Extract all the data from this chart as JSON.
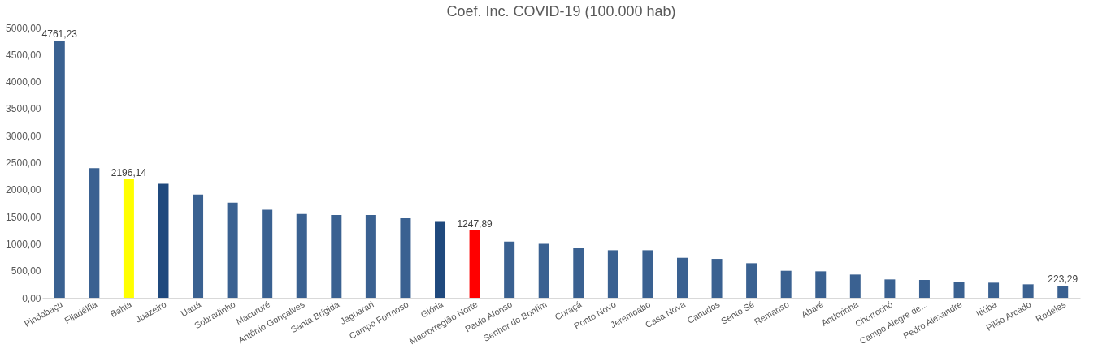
{
  "chart_data": {
    "type": "bar",
    "title": "Coef. Inc. COVID-19 (100.000 hab)",
    "categories": [
      "Pindobaçu",
      "Filadélfia",
      "Bahia",
      "Juazeiro",
      "Uauá",
      "Sobradinho",
      "Macururé",
      "Antônio Gonçalves",
      "Santa Brígida",
      "Jaguarari",
      "Campo Formoso",
      "Glória",
      "Macrorregião Norte",
      "Paulo Afonso",
      "Senhor do Bonfim",
      "Curaçá",
      "Ponto Novo",
      "Jeremoabo",
      "Casa Nova",
      "Canudos",
      "Sento Sé",
      "Remanso",
      "Abaré",
      "Andorinha",
      "Chorrochó",
      "Campo Alegre de...",
      "Pedro Alexandre",
      "Itiúba",
      "Pilão Arcado",
      "Rodelas"
    ],
    "values": [
      4761.23,
      2400,
      2196.14,
      2110,
      1910,
      1760,
      1630,
      1550,
      1530,
      1530,
      1470,
      1420,
      1247.89,
      1040,
      1000,
      930,
      880,
      880,
      740,
      720,
      640,
      500,
      490,
      430,
      340,
      330,
      300,
      280,
      250,
      223.29
    ],
    "colors": [
      "#3a6191",
      "#3a6191",
      "#ffff00",
      "#1f497d",
      "#3a6191",
      "#3a6191",
      "#3a6191",
      "#3a6191",
      "#3a6191",
      "#3a6191",
      "#3a6191",
      "#1f497d",
      "#ff0000",
      "#3a6191",
      "#3a6191",
      "#3a6191",
      "#3a6191",
      "#3a6191",
      "#3a6191",
      "#3a6191",
      "#3a6191",
      "#3a6191",
      "#3a6191",
      "#3a6191",
      "#3a6191",
      "#3a6191",
      "#3a6191",
      "#3a6191",
      "#3a6191",
      "#3a6191"
    ],
    "value_labels": [
      "4761,23",
      null,
      "2196,14",
      null,
      null,
      null,
      null,
      null,
      null,
      null,
      null,
      null,
      "1247,89",
      null,
      null,
      null,
      null,
      null,
      null,
      null,
      null,
      null,
      null,
      null,
      null,
      null,
      null,
      null,
      null,
      "223,29"
    ],
    "ylim": [
      0,
      5000
    ],
    "yticks": [
      {
        "value": 0,
        "label": "0,00"
      },
      {
        "value": 500,
        "label": "500,00"
      },
      {
        "value": 1000,
        "label": "1000,00"
      },
      {
        "value": 1500,
        "label": "1500,00"
      },
      {
        "value": 2000,
        "label": "2000,00"
      },
      {
        "value": 2500,
        "label": "2500,00"
      },
      {
        "value": 3000,
        "label": "3000,00"
      },
      {
        "value": 3500,
        "label": "3500,00"
      },
      {
        "value": 4000,
        "label": "4000,00"
      },
      {
        "value": 4500,
        "label": "4500,00"
      },
      {
        "value": 5000,
        "label": "5000,00"
      }
    ],
    "grid": false
  }
}
